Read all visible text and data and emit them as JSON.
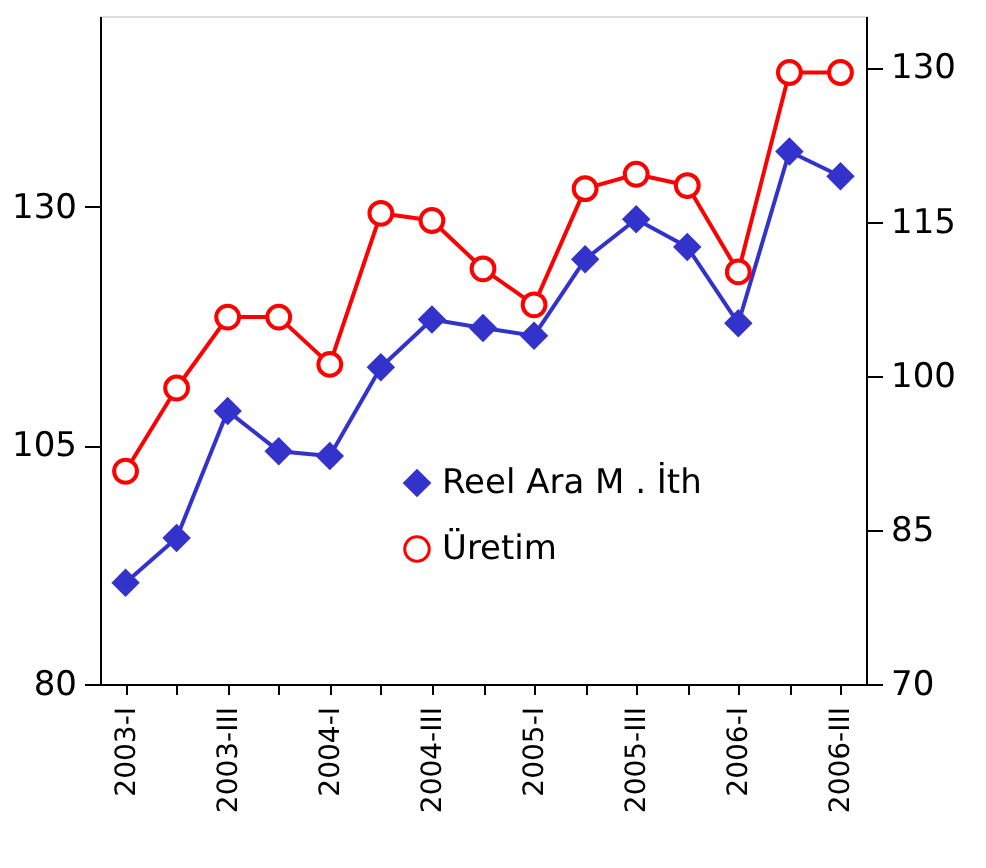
{
  "chart_data": {
    "type": "line",
    "categories": [
      "2003-I",
      null,
      "2003-III",
      null,
      "2004-I",
      null,
      "2004-III",
      null,
      "2005-I",
      null,
      "2005-III",
      null,
      "2006-I",
      null,
      "2006-III"
    ],
    "series": [
      {
        "name": "Reel Ara M . İth",
        "color": "#3333cc",
        "marker": "diamond",
        "values": [
          90.6,
          95.3,
          108.6,
          104.4,
          103.9,
          113.2,
          118.2,
          117.3,
          116.5,
          124.5,
          128.7,
          125.8,
          117.8,
          135.8,
          133.2
        ]
      },
      {
        "name": "Üretim",
        "color": "#ff0000",
        "marker": "circle",
        "axis": "y2",
        "values": [
          90.7,
          98.8,
          105.7,
          105.7,
          101.1,
          115.8,
          115.1,
          110.4,
          106.9,
          118.2,
          119.6,
          118.5,
          110.1,
          129.5,
          129.5
        ]
      }
    ],
    "ylim": [
      80,
      150
    ],
    "yticks": [
      80,
      105,
      130
    ],
    "y2lim": [
      70,
      135
    ],
    "y2ticks": [
      70,
      85,
      100,
      115,
      130
    ],
    "grid": false,
    "legend": "bottom right",
    "line_style": "solid"
  }
}
